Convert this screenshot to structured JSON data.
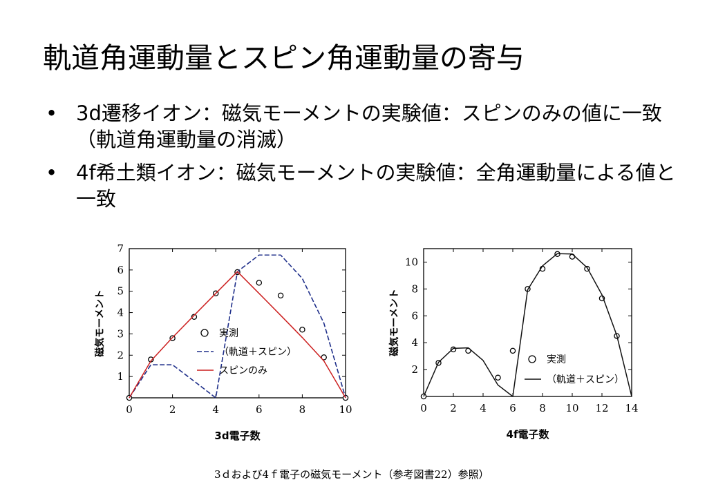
{
  "slide": {
    "title": "軌道角運動量とスピン角運動量の寄与",
    "bullets": [
      "3d遷移イオン：磁気モーメントの実験値：スピンのみの値に一致（軌道角運動量の消滅）",
      "4f希土類イオン：磁気モーメントの実験値：全角運動量による値と一致"
    ],
    "bullet_symbol": "•",
    "caption": "3ｄおよび4ｆ電子の磁気モーメント（参考図書22）参照）"
  },
  "chart_data": [
    {
      "type": "line",
      "xlabel": "3d電子数",
      "ylabel": "磁気モーメント",
      "xlim": [
        0,
        10
      ],
      "ylim": [
        0,
        7
      ],
      "xticks": [
        0,
        2,
        4,
        6,
        8,
        10
      ],
      "yticks": [
        1,
        2,
        3,
        4,
        5,
        6,
        7
      ],
      "legend_position": "center-right",
      "series": [
        {
          "name": "実測",
          "style": "open-circle",
          "x": [
            0,
            1,
            2,
            3,
            4,
            5,
            6,
            7,
            8,
            9,
            10
          ],
          "y": [
            0,
            1.8,
            2.8,
            3.8,
            4.9,
            5.9,
            5.4,
            4.8,
            3.2,
            1.9,
            0
          ]
        },
        {
          "name": "（軌道＋スピン）",
          "style": "dashed",
          "color": "#1f2f8a",
          "x": [
            0,
            1,
            2,
            3,
            4,
            5,
            6,
            7,
            8,
            9,
            10
          ],
          "y": [
            0,
            1.55,
            1.55,
            0.78,
            0,
            5.92,
            6.7,
            6.7,
            5.6,
            3.5,
            0
          ]
        },
        {
          "name": "スピンのみ",
          "style": "solid",
          "color": "#cc1f1f",
          "x": [
            0,
            1,
            2,
            3,
            4,
            5,
            6,
            7,
            8,
            9,
            10
          ],
          "y": [
            0,
            1.73,
            2.83,
            3.87,
            4.9,
            5.92,
            4.9,
            3.87,
            2.83,
            1.73,
            0
          ]
        }
      ]
    },
    {
      "type": "line",
      "xlabel": "4f電子数",
      "ylabel": "磁気モーメント",
      "xlim": [
        0,
        14
      ],
      "ylim": [
        0,
        11
      ],
      "xticks": [
        0,
        2,
        4,
        6,
        8,
        10,
        12,
        14
      ],
      "yticks": [
        2,
        4,
        6,
        8,
        10
      ],
      "legend_position": "bottom-right",
      "series": [
        {
          "name": "実測",
          "style": "open-circle",
          "x": [
            0,
            1,
            2,
            3,
            5,
            6,
            7,
            8,
            9,
            10,
            11,
            12,
            13
          ],
          "y": [
            0,
            2.5,
            3.5,
            3.4,
            1.4,
            3.4,
            8.0,
            9.5,
            10.6,
            10.4,
            9.5,
            7.3,
            4.5
          ]
        },
        {
          "name": "（軌道＋スピン）",
          "style": "solid",
          "color": "#111111",
          "x": [
            0,
            1,
            2,
            3,
            4,
            5,
            6,
            7,
            8,
            9,
            10,
            11,
            12,
            13,
            14
          ],
          "y": [
            0,
            2.54,
            3.58,
            3.62,
            2.68,
            0.85,
            0,
            7.94,
            9.72,
            10.63,
            10.6,
            9.59,
            7.57,
            4.54,
            0
          ]
        }
      ]
    }
  ]
}
